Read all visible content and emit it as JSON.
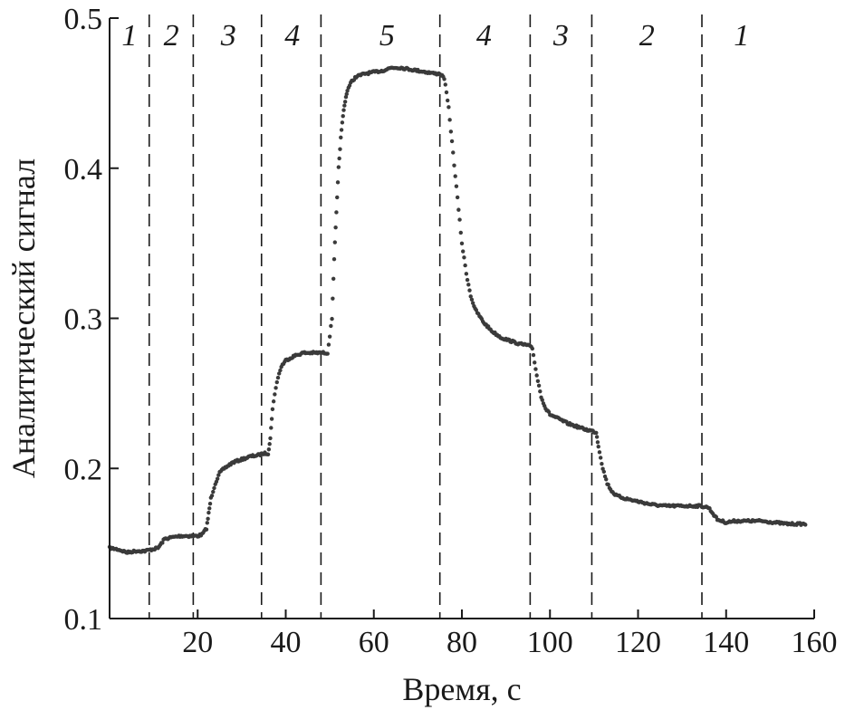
{
  "chart_data": {
    "type": "scatter",
    "title": "",
    "xlabel": "Время, с",
    "ylabel": "Аналитический сигнал",
    "xlim": [
      0,
      160
    ],
    "ylim": [
      0.1,
      0.5
    ],
    "x_ticks": [
      20,
      40,
      60,
      80,
      100,
      120,
      140,
      160
    ],
    "x_tick_labels": [
      "20",
      "40",
      "60",
      "80",
      "100",
      "120",
      "140",
      "160"
    ],
    "y_ticks": [
      0.1,
      0.2,
      0.3,
      0.4,
      0.5
    ],
    "y_tick_labels": [
      "0.1",
      "0.2",
      "0.3",
      "0.4",
      "0.5"
    ],
    "grid": false,
    "colors": {
      "points": "#3a3a3a",
      "axis": "#1a1a1a",
      "dividers": "#1a1a1a"
    },
    "dividers_x": [
      9,
      19,
      34.5,
      48,
      75,
      95.5,
      109.5,
      134.5
    ],
    "region_labels": [
      {
        "label": "1",
        "x": 4.5
      },
      {
        "label": "2",
        "x": 14
      },
      {
        "label": "3",
        "x": 27
      },
      {
        "label": "4",
        "x": 41.5
      },
      {
        "label": "5",
        "x": 63
      },
      {
        "label": "4",
        "x": 85
      },
      {
        "label": "3",
        "x": 102.5
      },
      {
        "label": "2",
        "x": 122
      },
      {
        "label": "1",
        "x": 143.5
      }
    ],
    "series": [
      {
        "x": [
          0,
          2,
          4,
          6,
          8,
          9.5,
          11,
          12.5,
          14,
          16,
          18,
          20,
          21,
          22,
          22.5,
          23,
          24,
          25,
          26,
          28,
          30,
          32,
          34,
          35,
          36,
          36.5,
          37,
          38,
          39,
          40,
          42,
          44,
          46,
          48,
          49.5,
          50.5,
          51,
          51.5,
          52,
          52.5,
          53,
          53.5,
          54,
          55,
          56,
          57,
          58,
          60,
          62,
          64,
          66,
          68,
          70,
          72,
          74,
          75,
          76,
          77,
          78,
          79,
          80,
          81,
          82,
          83,
          85,
          87,
          89,
          91,
          93,
          95,
          96,
          97,
          98,
          99,
          100,
          102,
          104,
          106,
          108,
          109.5,
          110.5,
          111,
          112,
          113,
          114,
          115,
          117,
          120,
          123,
          126,
          129,
          132,
          134,
          136,
          137,
          138,
          140,
          142,
          145,
          148,
          151,
          154,
          157,
          158
        ],
        "y": [
          0.147,
          0.146,
          0.144,
          0.145,
          0.145,
          0.146,
          0.147,
          0.153,
          0.154,
          0.155,
          0.155,
          0.155,
          0.156,
          0.16,
          0.17,
          0.18,
          0.19,
          0.197,
          0.2,
          0.204,
          0.206,
          0.208,
          0.209,
          0.21,
          0.21,
          0.22,
          0.24,
          0.258,
          0.268,
          0.272,
          0.275,
          0.277,
          0.277,
          0.277,
          0.277,
          0.3,
          0.34,
          0.37,
          0.4,
          0.42,
          0.435,
          0.445,
          0.452,
          0.458,
          0.461,
          0.462,
          0.463,
          0.464,
          0.465,
          0.467,
          0.467,
          0.466,
          0.465,
          0.464,
          0.463,
          0.463,
          0.46,
          0.44,
          0.41,
          0.38,
          0.35,
          0.33,
          0.315,
          0.306,
          0.297,
          0.291,
          0.287,
          0.285,
          0.283,
          0.282,
          0.28,
          0.262,
          0.248,
          0.24,
          0.236,
          0.233,
          0.23,
          0.228,
          0.226,
          0.225,
          0.224,
          0.215,
          0.2,
          0.19,
          0.185,
          0.182,
          0.18,
          0.178,
          0.176,
          0.175,
          0.175,
          0.175,
          0.175,
          0.174,
          0.17,
          0.166,
          0.164,
          0.165,
          0.165,
          0.165,
          0.164,
          0.163,
          0.163,
          0.163
        ]
      }
    ]
  }
}
